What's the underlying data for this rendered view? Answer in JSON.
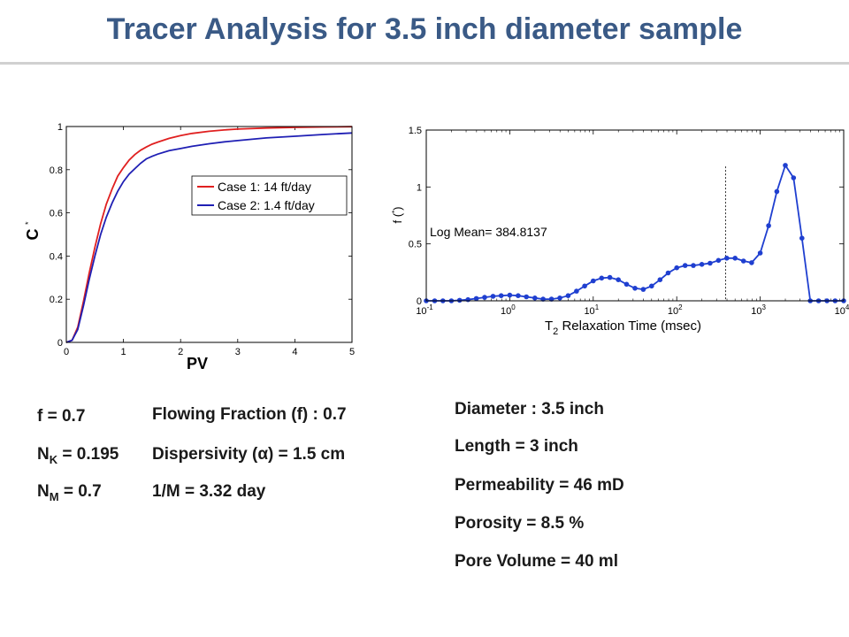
{
  "title": "Tracer Analysis for 3.5 inch diameter sample",
  "chart_data": [
    {
      "type": "line",
      "xlabel": "PV",
      "ylabel": "C",
      "ylabel_sup": "*",
      "xlim": [
        0,
        5
      ],
      "ylim": [
        0,
        1
      ],
      "xticks": [
        0,
        1,
        2,
        3,
        4,
        5
      ],
      "yticks": [
        0,
        0.2,
        0.4,
        0.6,
        0.8,
        1
      ],
      "xtick_labels": [
        "0",
        "1",
        "2",
        "3",
        "4",
        "5"
      ],
      "ytick_labels": [
        "0",
        "0.2",
        "0.4",
        "0.6",
        "0.8",
        "1"
      ],
      "grid": false,
      "legend_position": "center-right",
      "series": [
        {
          "name": "Case 1: 14 ft/day",
          "color": "#e02020",
          "x": [
            0,
            0.1,
            0.2,
            0.3,
            0.4,
            0.5,
            0.6,
            0.7,
            0.8,
            0.9,
            1.0,
            1.1,
            1.2,
            1.3,
            1.4,
            1.5,
            1.6,
            1.8,
            2.0,
            2.2,
            2.5,
            2.8,
            3.0,
            3.5,
            4.0,
            4.5,
            5.0
          ],
          "y": [
            0,
            0.01,
            0.07,
            0.19,
            0.32,
            0.44,
            0.55,
            0.64,
            0.71,
            0.77,
            0.81,
            0.845,
            0.87,
            0.89,
            0.905,
            0.918,
            0.928,
            0.945,
            0.958,
            0.968,
            0.978,
            0.985,
            0.988,
            0.993,
            0.996,
            0.998,
            0.999
          ]
        },
        {
          "name": "Case 2: 1.4 ft/day",
          "color": "#1f1fb4",
          "x": [
            0,
            0.1,
            0.2,
            0.3,
            0.4,
            0.5,
            0.6,
            0.7,
            0.8,
            0.9,
            1.0,
            1.1,
            1.2,
            1.3,
            1.4,
            1.5,
            1.6,
            1.8,
            2.0,
            2.2,
            2.5,
            2.8,
            3.0,
            3.5,
            4.0,
            4.5,
            5.0
          ],
          "y": [
            0,
            0.01,
            0.06,
            0.17,
            0.29,
            0.4,
            0.5,
            0.58,
            0.645,
            0.7,
            0.745,
            0.78,
            0.805,
            0.83,
            0.85,
            0.862,
            0.872,
            0.888,
            0.898,
            0.908,
            0.92,
            0.93,
            0.935,
            0.947,
            0.955,
            0.963,
            0.97
          ]
        }
      ]
    },
    {
      "type": "line",
      "xlabel": "T",
      "xlabel_sub": "2",
      "xlabel_rest": " Relaxation Time (msec)",
      "ylabel": "f (",
      "ylabel_sup": "*",
      "ylabel_close": ")",
      "x_scale": "log",
      "xlim": [
        0.1,
        10000
      ],
      "ylim": [
        0,
        1.5
      ],
      "xticks": [
        0.1,
        1,
        10,
        100,
        1000,
        10000
      ],
      "xtick_bases": [
        "10",
        "10",
        "10",
        "10",
        "10",
        "10"
      ],
      "xtick_exps": [
        "-1",
        "0",
        "1",
        "2",
        "3",
        "4"
      ],
      "yticks": [
        0,
        0.5,
        1,
        1.5
      ],
      "ytick_labels": [
        "0",
        "0.5",
        "1",
        "1.5"
      ],
      "grid": false,
      "annotation": "Log Mean= 384.8137",
      "marker_line_x": 384.8137,
      "series": [
        {
          "color": "#1f3fd0",
          "marker": "circle",
          "x": [
            0.1,
            0.126,
            0.158,
            0.2,
            0.251,
            0.316,
            0.398,
            0.5,
            0.63,
            0.79,
            1.0,
            1.26,
            1.58,
            2.0,
            2.51,
            3.16,
            3.98,
            5.0,
            6.3,
            7.9,
            10,
            12.6,
            15.8,
            20,
            25.1,
            31.6,
            39.8,
            50,
            63,
            79,
            100,
            126,
            158,
            200,
            251,
            316,
            398,
            500,
            630,
            790,
            1000,
            1260,
            1580,
            2000,
            2510,
            3160,
            3980,
            5000,
            6300,
            7900,
            10000
          ],
          "y": [
            0,
            0,
            0,
            0,
            0.005,
            0.01,
            0.02,
            0.03,
            0.04,
            0.045,
            0.05,
            0.045,
            0.035,
            0.025,
            0.015,
            0.015,
            0.025,
            0.045,
            0.085,
            0.13,
            0.175,
            0.2,
            0.205,
            0.185,
            0.145,
            0.11,
            0.1,
            0.13,
            0.185,
            0.245,
            0.29,
            0.31,
            0.31,
            0.32,
            0.33,
            0.355,
            0.375,
            0.375,
            0.35,
            0.335,
            0.42,
            0.66,
            0.96,
            1.19,
            1.08,
            0.55,
            0,
            0,
            0,
            0,
            0
          ]
        }
      ]
    }
  ],
  "left_params": {
    "f": "f = 0.7",
    "nk_prefix": "N",
    "nk_sub": "K",
    "nk_rest": " = 0.195",
    "nm_prefix": "N",
    "nm_sub": "M",
    "nm_rest": " = 0.7"
  },
  "middle_params": {
    "flowing_fraction": "Flowing Fraction (f) : 0.7",
    "dispersivity": "Dispersivity (α) = 1.5 cm",
    "inverse_m": "1/M  = 3.32 day"
  },
  "sample_props": {
    "diameter": "Diameter : 3.5 inch",
    "length": "Length = 3 inch",
    "permeability": "Permeability = 46 mD",
    "porosity": "Porosity = 8.5 %",
    "pore_volume": "Pore Volume = 40 ml"
  }
}
